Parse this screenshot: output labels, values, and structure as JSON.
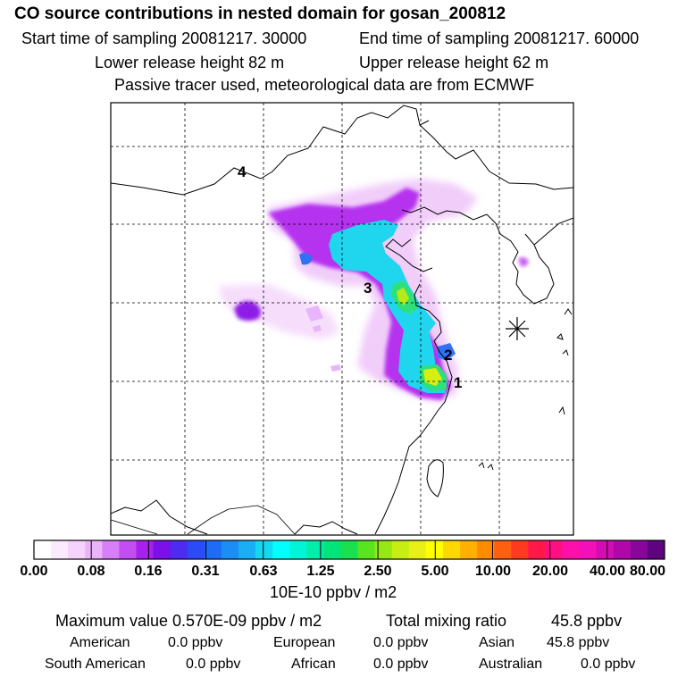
{
  "header": {
    "title": "CO  source contributions in nested domain for gosan_200812",
    "start_time": "Start time of sampling 20081217. 30000",
    "end_time": "End time of sampling 20081217. 60000",
    "lower_height": "Lower release height   82 m",
    "upper_height": "Upper release height   62 m",
    "tracer_note": "Passive tracer used, meteorological data are from ECMWF"
  },
  "map": {
    "region_labels": [
      "1",
      "2",
      "3",
      "4"
    ],
    "receptor_marker": "receptor-star-icon"
  },
  "colorbar": {
    "tick_labels": [
      "0.00",
      "0.08",
      "0.16",
      "0.31",
      "0.63",
      "1.25",
      "2.50",
      "5.00",
      "10.00",
      "20.00",
      "40.00",
      "80.00"
    ],
    "colors": [
      "#ffffff",
      "#fbeafe",
      "#f5d3fd",
      "#eab4fb",
      "#d77ff6",
      "#c24ef2",
      "#a820ed",
      "#7b10e8",
      "#4d2bf0",
      "#2a4bf5",
      "#1e6cf5",
      "#1a8ef5",
      "#1aaff5",
      "#14d8f0",
      "#00ffff",
      "#00f5d8",
      "#00eeaa",
      "#00e57a",
      "#18e050",
      "#58e41e",
      "#96e812",
      "#c6ee12",
      "#e8f018",
      "#ffff00",
      "#ffd800",
      "#ffb000",
      "#ff8c00",
      "#ff6010",
      "#ff3a20",
      "#ff1848",
      "#ff1080",
      "#ff10a8",
      "#f410b8",
      "#d40cb4",
      "#b008a8",
      "#88069a",
      "#5e0480"
    ],
    "units": "10E-10 ppbv / m2"
  },
  "summary": {
    "max_label": "Maximum value  0.570E-09 ppbv / m2",
    "total_label": "Total mixing ratio",
    "total_value": "45.8 ppbv",
    "sources": [
      {
        "name": "American",
        "value": "0.0 ppbv"
      },
      {
        "name": "European",
        "value": "0.0 ppbv"
      },
      {
        "name": "Asian",
        "value": "45.8 ppbv"
      },
      {
        "name": "South American",
        "value": "0.0 ppbv"
      },
      {
        "name": "African",
        "value": "0.0 ppbv"
      },
      {
        "name": "Australian",
        "value": "0.0 ppbv"
      }
    ]
  }
}
